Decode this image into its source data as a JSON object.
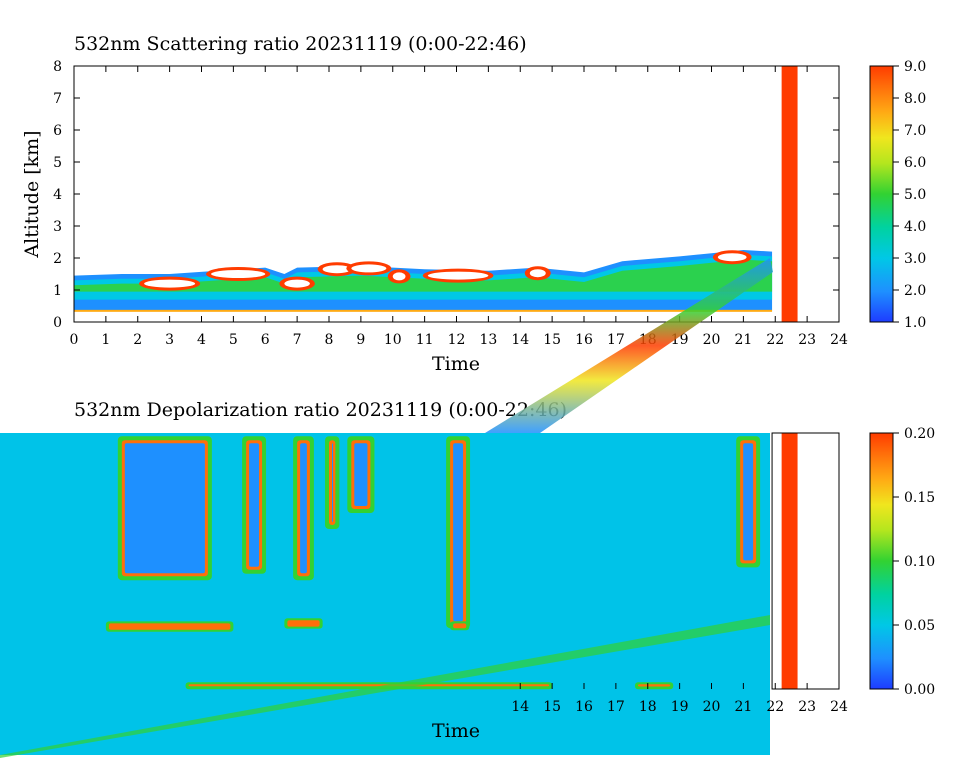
{
  "chart_data": [
    {
      "type": "heatmap",
      "title": "532nm Scattering ratio  20231119 (0:00-22:46)",
      "xlabel": "Time",
      "ylabel": "Altitude [km]",
      "xlim": [
        0,
        24
      ],
      "ylim": [
        0,
        8
      ],
      "x_ticks": [
        0,
        1,
        2,
        3,
        4,
        5,
        6,
        7,
        8,
        9,
        10,
        11,
        12,
        13,
        14,
        15,
        16,
        17,
        18,
        19,
        20,
        21,
        22,
        23,
        24
      ],
      "y_ticks": [
        0,
        1,
        2,
        3,
        4,
        5,
        6,
        7,
        8
      ],
      "colorbar": {
        "min": 1.0,
        "max": 9.0,
        "tick_labels": [
          "1.0",
          "2.0",
          "3.0",
          "4.0",
          "5.0",
          "6.0",
          "7.0",
          "8.0",
          "9.0"
        ]
      },
      "data_end_hour": 21.9,
      "no_data_bar": {
        "x_start": 22.2,
        "x_end": 22.7,
        "color": "#ff3c00"
      },
      "layer_top_km": [
        [
          0,
          1.45
        ],
        [
          1.5,
          1.5
        ],
        [
          3,
          1.5
        ],
        [
          4.5,
          1.6
        ],
        [
          6,
          1.7
        ],
        [
          6.6,
          1.5
        ],
        [
          7,
          1.7
        ],
        [
          9,
          1.75
        ],
        [
          11,
          1.65
        ],
        [
          13,
          1.6
        ],
        [
          14.5,
          1.7
        ],
        [
          16,
          1.55
        ],
        [
          17.2,
          1.9
        ],
        [
          19,
          2.05
        ],
        [
          20,
          2.15
        ],
        [
          21,
          2.25
        ],
        [
          21.9,
          2.2
        ]
      ],
      "strong_features": [
        {
          "x0": 2.2,
          "x1": 3.8,
          "y0": 1.1,
          "y1": 1.3
        },
        {
          "x0": 4.3,
          "x1": 6.0,
          "y0": 1.4,
          "y1": 1.6
        },
        {
          "x0": 6.6,
          "x1": 7.4,
          "y0": 1.1,
          "y1": 1.3
        },
        {
          "x0": 7.8,
          "x1": 8.7,
          "y0": 1.55,
          "y1": 1.75
        },
        {
          "x0": 8.7,
          "x1": 9.8,
          "y0": 1.6,
          "y1": 1.75
        },
        {
          "x0": 10.0,
          "x1": 10.4,
          "y0": 1.35,
          "y1": 1.5
        },
        {
          "x0": 11.1,
          "x1": 13.0,
          "y0": 1.35,
          "y1": 1.55
        },
        {
          "x0": 14.3,
          "x1": 14.8,
          "y0": 1.45,
          "y1": 1.6
        },
        {
          "x0": 20.2,
          "x1": 21.1,
          "y0": 1.95,
          "y1": 2.1
        }
      ]
    },
    {
      "type": "heatmap",
      "title": "532nm Depolarization ratio  20231119 (0:00-22:46)",
      "xlabel": "Time",
      "ylabel": "",
      "xlim": [
        0,
        24
      ],
      "ylim": [
        0,
        8
      ],
      "x_ticks_visible": [
        14,
        15,
        16,
        17,
        18,
        19,
        20,
        21,
        22,
        23,
        24
      ],
      "colorbar": {
        "min": 0.0,
        "max": 0.2,
        "tick_labels": [
          "0.00",
          "0.05",
          "0.10",
          "0.15",
          "0.20"
        ]
      },
      "background_value": 0.045,
      "data_end_hour": 21.9,
      "no_data_bar": {
        "x_start": 22.2,
        "x_end": 22.7,
        "color": "#ff3c00"
      },
      "high_depol_columns": [
        {
          "x0": 1.5,
          "x1": 4.2,
          "y0": 3.4,
          "y1": 7.9
        },
        {
          "x0": 5.4,
          "x1": 5.9,
          "y0": 3.6,
          "y1": 7.9
        },
        {
          "x0": 7.0,
          "x1": 7.4,
          "y0": 3.4,
          "y1": 7.9
        },
        {
          "x0": 8.0,
          "x1": 8.2,
          "y0": 5.0,
          "y1": 7.9
        },
        {
          "x0": 8.7,
          "x1": 9.3,
          "y0": 5.5,
          "y1": 7.9
        },
        {
          "x0": 11.8,
          "x1": 12.3,
          "y0": 1.9,
          "y1": 7.9
        },
        {
          "x0": 20.9,
          "x1": 21.4,
          "y0": 3.8,
          "y1": 7.9
        }
      ],
      "high_depol_layers": [
        {
          "x0": 1.0,
          "x1": 5.0,
          "y0": 1.85,
          "y1": 2.05
        },
        {
          "x0": 6.6,
          "x1": 7.8,
          "y0": 1.95,
          "y1": 2.15
        },
        {
          "x0": 11.8,
          "x1": 12.4,
          "y0": 1.9,
          "y1": 2.05
        },
        {
          "x0": 3.5,
          "x1": 15.0,
          "y0": 0.1,
          "y1": 0.15
        },
        {
          "x0": 17.6,
          "x1": 18.8,
          "y0": 0.08,
          "y1": 0.15
        }
      ]
    }
  ]
}
